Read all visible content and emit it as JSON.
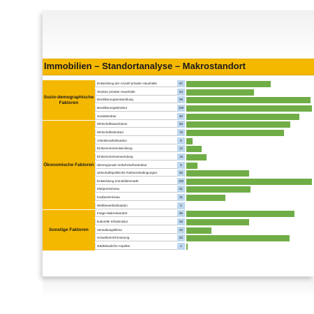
{
  "title": "Immobilien – Standortanalyse – Makrostandort",
  "colors": {
    "category": "#f5b800",
    "value_cell": "#bdd7ee",
    "bar": "#70ad47"
  },
  "categories": [
    {
      "name": "Sozio-demographische Faktoren",
      "rows": [
        {
          "label": "Entwicklung der Anzahl privater Haushalte",
          "value": 67
        },
        {
          "label": "Struktur privater Haushalte",
          "value": 54
        },
        {
          "label": "Bevölkerungsentwicklung",
          "value": 99
        },
        {
          "label": "Bevölkerungsstruktur",
          "value": 100
        },
        {
          "label": "Sozialstruktur",
          "value": 90
        }
      ]
    },
    {
      "name": "Ökonomische Faktoren",
      "rows": [
        {
          "label": "Wirtschaftswachstum",
          "value": 83
        },
        {
          "label": "Wirtschaftsstruktur",
          "value": 78
        },
        {
          "label": "Arbeitsmarktsituation",
          "value": 5
        },
        {
          "label": "Einkommensentwicklung",
          "value": 12
        },
        {
          "label": "Einkommensverwendung",
          "value": 16
        },
        {
          "label": "überregionale Verkehrsinfrastruktur",
          "value": 9
        },
        {
          "label": "wirtschaftspolitische Rahmenbedingungen",
          "value": 50
        },
        {
          "label": "Entwicklung Immobilienmarkt",
          "value": 100
        },
        {
          "label": "Mietpreisniveau",
          "value": 51
        },
        {
          "label": "Kaufpreisniveau",
          "value": 31
        },
        {
          "label": "Wettbewerbssituation",
          "value": 0
        }
      ]
    },
    {
      "name": "Sonstige Faktoren",
      "rows": [
        {
          "label": "Image Makrostandort",
          "value": 86
        },
        {
          "label": "kulturelle Infrastruktur",
          "value": 50
        },
        {
          "label": "Verwaltungsklima",
          "value": 20
        },
        {
          "label": "Umweltverschmutzung",
          "value": 82
        },
        {
          "label": "städtebauliche Aspekte",
          "value": 1
        }
      ]
    }
  ]
}
